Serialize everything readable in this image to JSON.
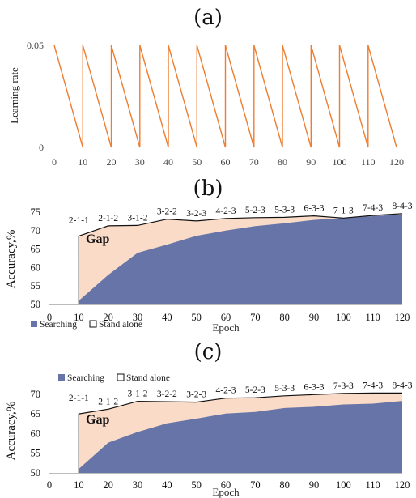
{
  "chart_data": [
    {
      "panel": "(a)",
      "type": "line",
      "ylabel": "Learning rate",
      "x_ticks": [
        0,
        10,
        20,
        30,
        40,
        50,
        60,
        70,
        80,
        90,
        100,
        110,
        120
      ],
      "y_ticks": [
        0,
        0.05
      ],
      "xlim": [
        0,
        120
      ],
      "ylim": [
        0,
        0.05
      ],
      "series": [
        {
          "color": "#ed7d31",
          "x": [
            0,
            10,
            10,
            20,
            20,
            30,
            30,
            40,
            40,
            50,
            50,
            60,
            60,
            70,
            70,
            80,
            80,
            90,
            90,
            100,
            100,
            110,
            110,
            120
          ],
          "y": [
            0.05,
            0,
            0.05,
            0,
            0.05,
            0,
            0.05,
            0,
            0.05,
            0,
            0.05,
            0,
            0.05,
            0,
            0.05,
            0,
            0.05,
            0,
            0.05,
            0,
            0.05,
            0,
            0.05,
            0
          ]
        }
      ]
    },
    {
      "panel": "(b)",
      "type": "area",
      "xlabel": "Epoch",
      "ylabel": "Accuracy,%",
      "x_ticks": [
        0,
        10,
        20,
        30,
        40,
        50,
        60,
        70,
        80,
        90,
        100,
        110,
        120
      ],
      "y_ticks": [
        50,
        55,
        60,
        65,
        70,
        75
      ],
      "xlim": [
        0,
        120
      ],
      "ylim": [
        50,
        75
      ],
      "x": [
        10,
        20,
        30,
        40,
        50,
        60,
        70,
        80,
        90,
        100,
        110,
        120
      ],
      "series": [
        {
          "name": "Searching",
          "color": "#6674a8",
          "values": [
            51,
            58,
            64,
            66.2,
            68.6,
            70,
            71.2,
            72,
            72.9,
            73.4,
            73.9,
            74.4
          ]
        },
        {
          "name": "Stand alone",
          "color": "#fadbc8",
          "values": [
            68.5,
            71.3,
            71.4,
            73.1,
            72.6,
            73.3,
            73.5,
            73.6,
            74,
            73.4,
            74.1,
            74.6
          ]
        }
      ],
      "point_labels": [
        "2-1-1",
        "2-1-2",
        "3-1-2",
        "3-2-2",
        "3-2-3",
        "4-2-3",
        "5-2-3",
        "5-3-3",
        "6-3-3",
        "7-1-3",
        "7-4-3",
        "8-4-3"
      ],
      "annotation": "Gap",
      "legend_position": "bottom-left"
    },
    {
      "panel": "(c)",
      "type": "area",
      "xlabel": "Epoch",
      "ylabel": "Accuracy,%",
      "x_ticks": [
        0,
        10,
        20,
        30,
        40,
        50,
        60,
        70,
        80,
        90,
        100,
        110,
        120
      ],
      "y_ticks": [
        50,
        55,
        60,
        65,
        70
      ],
      "xlim": [
        0,
        120
      ],
      "ylim": [
        50,
        71
      ],
      "x": [
        10,
        20,
        30,
        40,
        50,
        60,
        70,
        80,
        90,
        100,
        110,
        120
      ],
      "series": [
        {
          "name": "Searching",
          "color": "#6674a8",
          "values": [
            51,
            57.7,
            60.4,
            62.6,
            63.8,
            65.1,
            65.5,
            66.5,
            66.8,
            67.4,
            67.6,
            68.3
          ]
        },
        {
          "name": "Stand alone",
          "color": "#fadbc8",
          "values": [
            65,
            66.2,
            68.2,
            68.1,
            68,
            69,
            69.1,
            69.6,
            69.9,
            70.2,
            70.3,
            70.3
          ]
        }
      ],
      "point_labels": [
        "2-1-1",
        "2-1-2",
        "3-1-2",
        "3-2-2",
        "3-2-3",
        "4-2-3",
        "5-2-3",
        "5-3-3",
        "6-3-3",
        "7-3-3",
        "7-4-3",
        "8-4-3"
      ],
      "annotation": "Gap",
      "legend_position": "top-left"
    }
  ]
}
